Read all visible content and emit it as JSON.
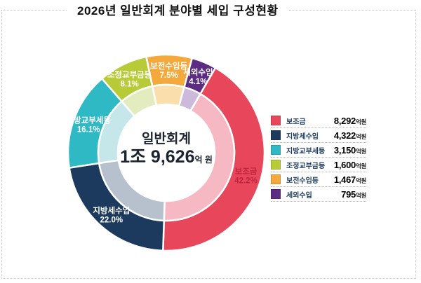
{
  "title": "2026년 일반회계 분야별 세입 구성현황",
  "center_label": {
    "line1": "일반회계",
    "amount": "1조 9,626",
    "unit": "억 원"
  },
  "legend_unit": "억원",
  "colors": {
    "frame_border": "#c9c9c9",
    "title_text": "#111111",
    "legend_label_text": "#1b3a5e",
    "center_text": "#1b2432"
  },
  "chart_data": {
    "type": "pie",
    "subtype": "donut-double-ring",
    "title": "2026년 일반회계 분야별 세입 구성현황",
    "total_label": "일반회계 1조 9,626억 원",
    "start_angle_deg": 30,
    "value_unit": "억원",
    "legend_position": "right",
    "segments": [
      {
        "label": "보조금",
        "percent": 42.2,
        "value": "8,292",
        "color": "#e8465a",
        "inner_color": "#f6b9c3",
        "label_color": "#c0243f"
      },
      {
        "label": "지방세수입",
        "percent": 22.0,
        "value": "4,322",
        "color": "#1b3a5e",
        "inner_color": "#b7c1cd",
        "label_color": "#ffffff"
      },
      {
        "label": "지방교부세등",
        "percent": 16.1,
        "value": "3,150",
        "color": "#2fb9c4",
        "inner_color": "#c5e7e9",
        "label_color": "#ffffff"
      },
      {
        "label": "조정교부금등",
        "percent": 8.1,
        "value": "1,600",
        "color": "#b7cb38",
        "inner_color": "#e2ecbe",
        "label_color": "#ffffff"
      },
      {
        "label": "보전수입등",
        "percent": 7.5,
        "value": "1,467",
        "color": "#f3a93c",
        "inner_color": "#fadfad",
        "label_color": "#ffffff"
      },
      {
        "label": "세외수입",
        "percent": 4.1,
        "value": "795",
        "color": "#5c2b82",
        "inner_color": "#cdb9dc",
        "label_color": "#ffffff"
      }
    ]
  }
}
